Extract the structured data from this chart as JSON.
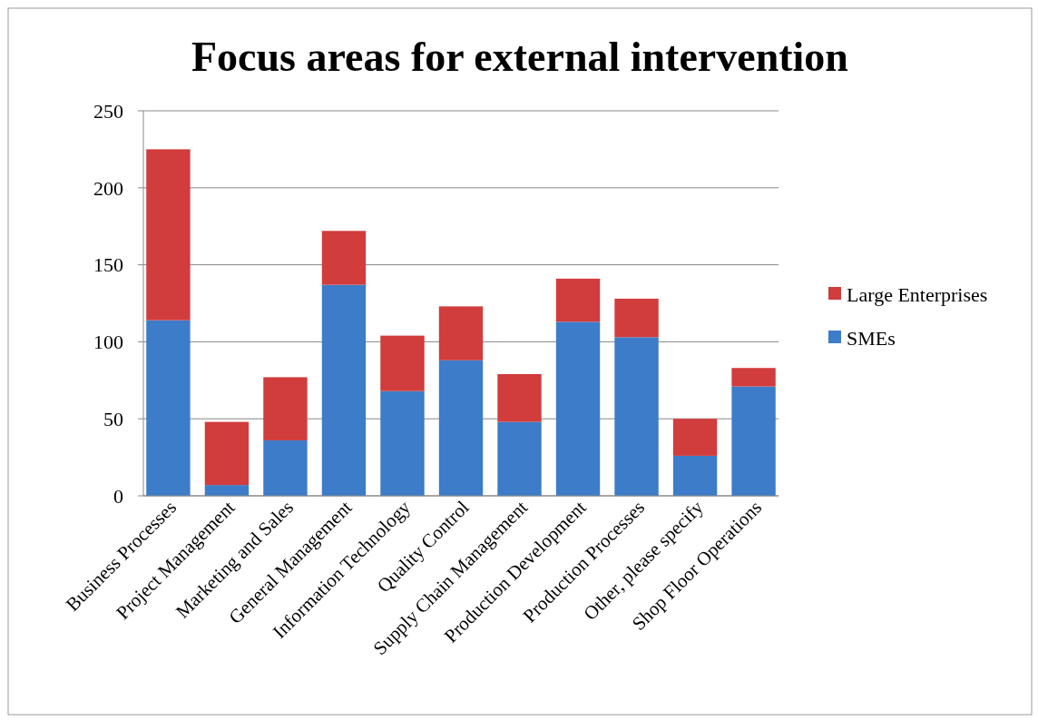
{
  "chart_data": {
    "type": "bar",
    "title": "Focus areas for external intervention",
    "categories": [
      "Business Processes",
      "Project Management",
      "Marketing and Sales",
      "General Management",
      "Information Technology",
      "Quality Control",
      "Supply Chain Management",
      "Production Development",
      "Production Processes",
      "Other, please specify",
      "Shop Floor Operations"
    ],
    "series": [
      {
        "name": "SMEs",
        "color": "#3d7cc9",
        "values": [
          114,
          7,
          36,
          137,
          68,
          88,
          48,
          113,
          103,
          26,
          71
        ]
      },
      {
        "name": "Large Enterprises",
        "color": "#d13c3c",
        "values": [
          111,
          41,
          41,
          35,
          36,
          35,
          31,
          28,
          25,
          24,
          12
        ]
      }
    ],
    "stacked": true,
    "ylim": [
      0,
      250
    ],
    "yticks": [
      0,
      50,
      100,
      150,
      200,
      250
    ],
    "grid": "y",
    "legend": "right"
  }
}
